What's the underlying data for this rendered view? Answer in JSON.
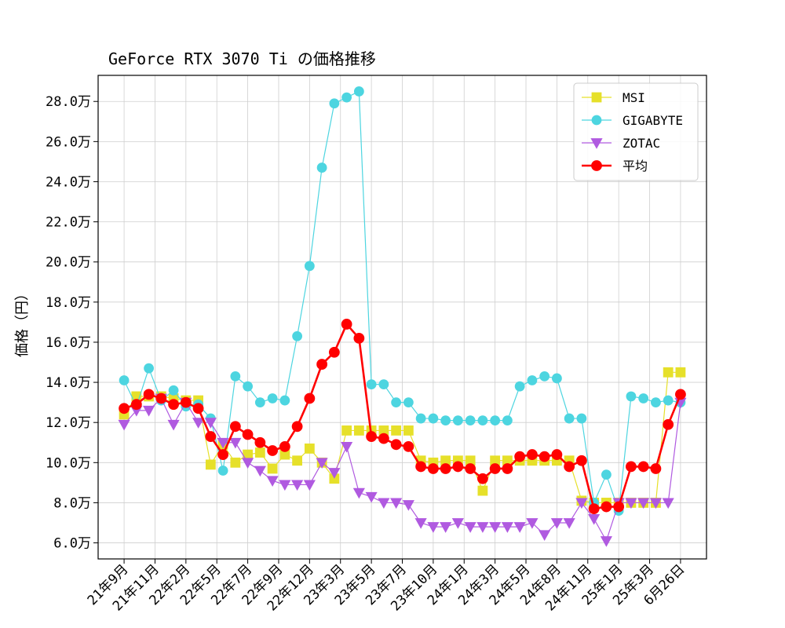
{
  "chart_data": {
    "type": "line",
    "title": "GeForce RTX 3070 Ti の価格推移",
    "xlabel": "",
    "ylabel": "価格（円）",
    "ylim": [
      5.2,
      29.3
    ],
    "yticks": [
      6,
      8,
      10,
      12,
      14,
      16,
      18,
      20,
      22,
      24,
      26,
      28
    ],
    "ytick_labels": [
      "6.0万",
      "8.0万",
      "10.0万",
      "12.0万",
      "14.0万",
      "16.0万",
      "18.0万",
      "20.0万",
      "22.0万",
      "24.0万",
      "26.0万",
      "28.0万"
    ],
    "x_count": 46,
    "xlim": [
      -2.1,
      47.1
    ],
    "xticks": [
      0,
      2.5,
      5,
      7.5,
      10,
      12.5,
      15,
      17.5,
      20,
      22.5,
      25,
      27.5,
      30,
      32.5,
      35,
      37.5,
      40,
      42.5,
      45
    ],
    "xtick_labels": [
      "21年9月",
      "21年11月",
      "22年2月",
      "22年5月",
      "22年7月",
      "22年9月",
      "22年12月",
      "23年3月",
      "23年5月",
      "23年7月",
      "23年10月",
      "24年1月",
      "24年3月",
      "24年5月",
      "24年8月",
      "24年11月",
      "25年1月",
      "25年3月",
      "6月26日"
    ],
    "grid": true,
    "legend_position": "top-right",
    "series": [
      {
        "name": "MSI",
        "color": "#e6e02a",
        "marker": "square",
        "line_width": 1.2,
        "values": [
          12.4,
          13.3,
          13.3,
          13.3,
          13.2,
          13.1,
          13.1,
          9.9,
          10.9,
          10.0,
          10.4,
          10.5,
          9.7,
          10.4,
          10.1,
          10.7,
          10.0,
          9.2,
          11.6,
          11.6,
          11.6,
          11.6,
          11.6,
          11.6,
          10.1,
          10.0,
          10.1,
          10.1,
          10.1,
          8.6,
          10.1,
          10.1,
          10.1,
          10.1,
          10.1,
          10.1,
          10.1,
          8.1,
          8.0,
          8.0,
          8.0,
          8.0,
          8.0,
          8.0,
          14.5,
          14.5
        ]
      },
      {
        "name": "GIGABYTE",
        "color": "#4dd5e0",
        "marker": "circle",
        "line_width": 1.2,
        "values": [
          14.1,
          12.8,
          14.7,
          13.1,
          13.6,
          12.8,
          12.9,
          12.2,
          9.6,
          14.3,
          13.8,
          13.0,
          13.2,
          13.1,
          16.3,
          19.8,
          24.7,
          27.9,
          28.2,
          28.5,
          13.9,
          13.9,
          13.0,
          13.0,
          12.2,
          12.2,
          12.1,
          12.1,
          12.1,
          12.1,
          12.1,
          12.1,
          13.8,
          14.1,
          14.3,
          14.2,
          12.2,
          12.2,
          8.0,
          9.4,
          7.6,
          13.3,
          13.2,
          13.0,
          13.1,
          13.0
        ]
      },
      {
        "name": "ZOTAC",
        "color": "#b05ae0",
        "marker": "triangle-down",
        "line_width": 1.2,
        "values": [
          11.9,
          12.6,
          12.6,
          13.2,
          11.9,
          13.0,
          12.0,
          12.0,
          11.0,
          11.0,
          10.0,
          9.6,
          9.1,
          8.9,
          8.9,
          8.9,
          10.0,
          9.5,
          10.8,
          8.5,
          8.3,
          8.0,
          8.0,
          7.9,
          7.0,
          6.8,
          6.8,
          7.0,
          6.8,
          6.8,
          6.8,
          6.8,
          6.8,
          7.0,
          6.4,
          7.0,
          7.0,
          8.0,
          7.2,
          6.1,
          8.0,
          8.0,
          8.0,
          8.0,
          8.0,
          13.0
        ]
      },
      {
        "name": "平均",
        "color": "#ff0000",
        "marker": "circle",
        "line_width": 2.6,
        "values": [
          12.7,
          12.9,
          13.4,
          13.2,
          12.9,
          13.0,
          12.7,
          11.3,
          10.4,
          11.8,
          11.4,
          11.0,
          10.6,
          10.8,
          11.8,
          13.2,
          14.9,
          15.5,
          16.9,
          16.2,
          11.3,
          11.2,
          10.9,
          10.8,
          9.8,
          9.7,
          9.7,
          9.8,
          9.7,
          9.2,
          9.7,
          9.7,
          10.3,
          10.4,
          10.3,
          10.4,
          9.8,
          10.1,
          7.7,
          7.8,
          7.8,
          9.8,
          9.8,
          9.7,
          11.9,
          13.4
        ]
      }
    ]
  }
}
